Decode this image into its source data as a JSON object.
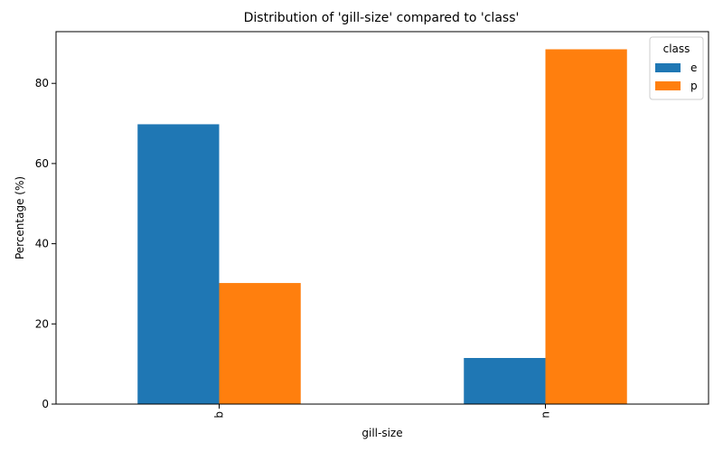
{
  "chart_data": {
    "type": "bar",
    "title": "Distribution of 'gill-size' compared to 'class'",
    "xlabel": "gill-size",
    "ylabel": "Percentage (%)",
    "categories": [
      "b",
      "n"
    ],
    "series": [
      {
        "name": "e",
        "values": [
          69.8,
          11.5
        ],
        "color": "#1f77b4"
      },
      {
        "name": "p",
        "values": [
          30.2,
          88.5
        ],
        "color": "#ff7f0e"
      }
    ],
    "ylim": [
      0,
      92.9
    ],
    "yticks": [
      0,
      20,
      40,
      60,
      80
    ],
    "legend": {
      "title": "class",
      "position": "top-right"
    },
    "grid": false
  }
}
